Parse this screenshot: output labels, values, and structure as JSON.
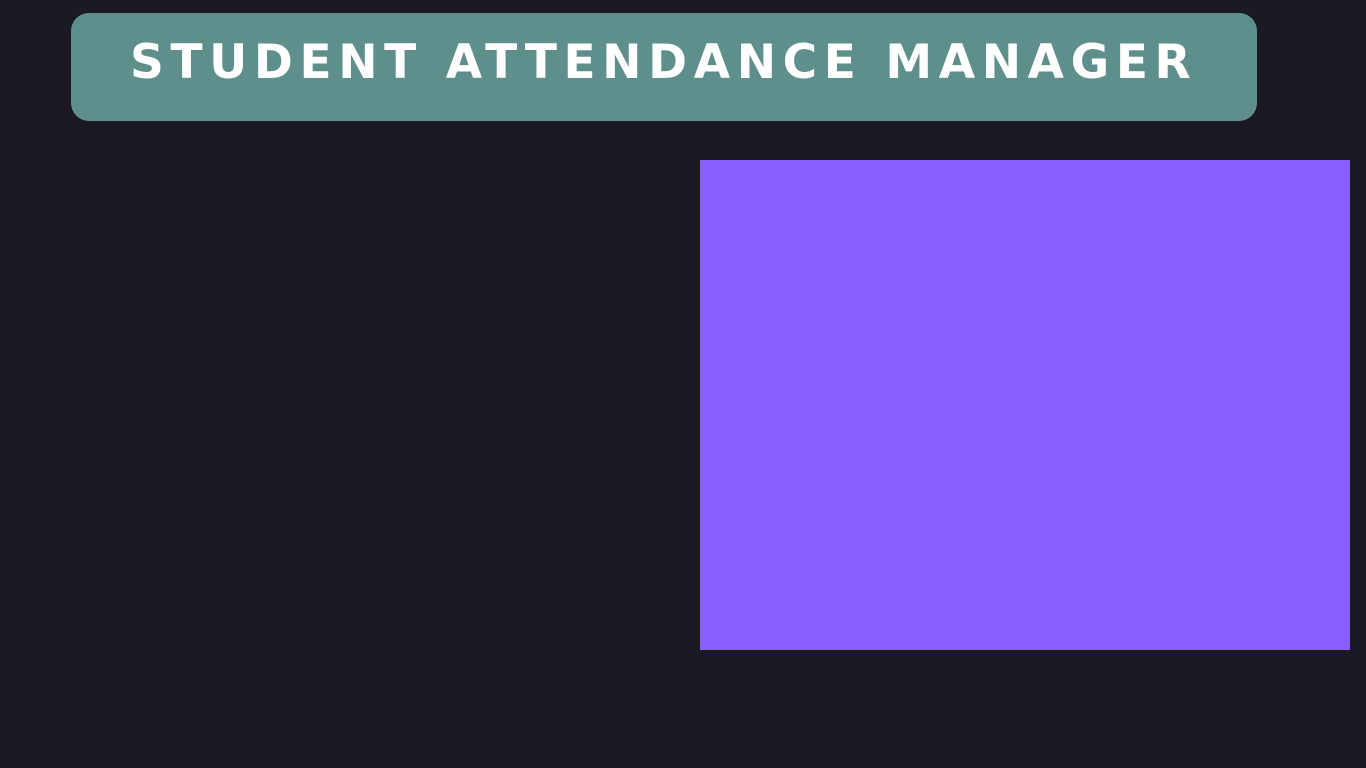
{
  "header": {
    "title": "STUDENT ATTENDANCE MANAGER"
  },
  "colors": {
    "background": "#1b1a23",
    "header_banner": "#5e8f8a",
    "title_text": "#ffffff",
    "content_panel": "#8760ff"
  }
}
